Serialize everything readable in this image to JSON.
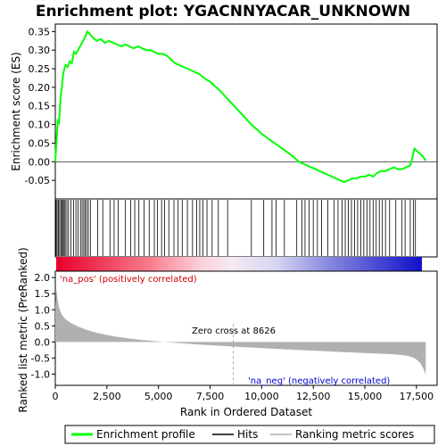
{
  "chart_data": {
    "type": "line",
    "title": "Enrichment plot: YGACNNYACAR_UNKNOWN",
    "xlabel": "Rank in Ordered Dataset",
    "ylabel_top": "Enrichment score (ES)",
    "ylabel_bottom": "Ranked list metric (PreRanked)",
    "xlim": [
      0,
      18500
    ],
    "ylim_top": [
      -0.1,
      0.37
    ],
    "ylim_bottom": [
      -1.35,
      2.2
    ],
    "x_ticks": [
      0,
      2500,
      5000,
      7500,
      10000,
      12500,
      15000,
      17500
    ],
    "x_tick_labels": [
      "0",
      "2,500",
      "5,000",
      "7,500",
      "10,000",
      "12,500",
      "15,000",
      "17,500"
    ],
    "y_ticks_top": [
      -0.05,
      0.0,
      0.05,
      0.1,
      0.15,
      0.2,
      0.25,
      0.3,
      0.35
    ],
    "y_tick_labels_top": [
      "-0.05",
      "0.00",
      "0.05",
      "0.10",
      "0.15",
      "0.20",
      "0.25",
      "0.30",
      "0.35"
    ],
    "y_ticks_bottom": [
      -1.0,
      -0.5,
      0.0,
      0.5,
      1.0,
      1.5,
      2.0
    ],
    "y_tick_labels_bottom": [
      "-1.0",
      "-0.5",
      "0.0",
      "0.5",
      "1.0",
      "1.5",
      "2.0"
    ],
    "series": [
      {
        "name": "Enrichment profile",
        "color": "#00ff00",
        "x": [
          0,
          60,
          120,
          180,
          260,
          320,
          380,
          440,
          500,
          600,
          700,
          800,
          900,
          1000,
          1150,
          1250,
          1350,
          1450,
          1550,
          1650,
          1800,
          2000,
          2200,
          2400,
          2600,
          2800,
          3000,
          3200,
          3400,
          3600,
          3800,
          4000,
          4200,
          4400,
          4600,
          4800,
          5000,
          5200,
          5400,
          5600,
          5800,
          6000,
          6200,
          6400,
          6600,
          6800,
          7000,
          7200,
          7500,
          8000,
          8500,
          9000,
          9500,
          10000,
          10500,
          11000,
          11500,
          11800,
          12000,
          12200,
          12400,
          12600,
          12800,
          13000,
          13200,
          13400,
          13600,
          13800,
          14000,
          14200,
          14400,
          14600,
          14800,
          15000,
          15200,
          15400,
          15600,
          15800,
          16000,
          16200,
          16400,
          16600,
          16800,
          17000,
          17200,
          17300,
          17400,
          17600,
          17800,
          17950
        ],
        "values": [
          0.0,
          0.06,
          0.11,
          0.105,
          0.175,
          0.2,
          0.235,
          0.25,
          0.26,
          0.255,
          0.27,
          0.265,
          0.295,
          0.29,
          0.305,
          0.315,
          0.325,
          0.335,
          0.35,
          0.345,
          0.335,
          0.325,
          0.33,
          0.32,
          0.325,
          0.32,
          0.315,
          0.31,
          0.315,
          0.31,
          0.305,
          0.31,
          0.305,
          0.3,
          0.3,
          0.295,
          0.29,
          0.29,
          0.285,
          0.275,
          0.265,
          0.26,
          0.255,
          0.25,
          0.245,
          0.24,
          0.235,
          0.225,
          0.215,
          0.19,
          0.16,
          0.13,
          0.1,
          0.075,
          0.055,
          0.035,
          0.015,
          0.0,
          -0.005,
          -0.01,
          -0.015,
          -0.02,
          -0.025,
          -0.03,
          -0.035,
          -0.04,
          -0.045,
          -0.05,
          -0.055,
          -0.05,
          -0.045,
          -0.045,
          -0.04,
          -0.04,
          -0.035,
          -0.04,
          -0.03,
          -0.025,
          -0.025,
          -0.02,
          -0.015,
          -0.02,
          -0.02,
          -0.015,
          -0.01,
          0.01,
          0.035,
          0.025,
          0.015,
          0.003
        ]
      }
    ],
    "hits_legend": "Hits",
    "ranking_legend": "Ranking metric scores",
    "enrichment_legend": "Enrichment profile",
    "zero_cross_label": "Zero cross at 8626",
    "zero_cross_x": 8626,
    "pos_label": "'na_pos' (positively correlated)",
    "neg_label": "'na_neg' (negatively correlated)",
    "hit_positions": [
      40,
      90,
      150,
      210,
      270,
      330,
      380,
      430,
      480,
      560,
      640,
      760,
      880,
      1000,
      1100,
      1220,
      1300,
      1380,
      1450,
      1520,
      1600,
      1700,
      2050,
      2300,
      2650,
      2850,
      3050,
      3400,
      3650,
      3850,
      4050,
      4300,
      4550,
      4800,
      4950,
      5150,
      5300,
      5500,
      5750,
      5950,
      6150,
      6400,
      6650,
      6850,
      7000,
      7150,
      7350,
      7600,
      7900,
      8350,
      9500,
      10100,
      10500,
      10700,
      11100,
      11700,
      11950,
      12100,
      12300,
      12500,
      12700,
      12900,
      13200,
      13500,
      13700,
      13900,
      14050,
      14200,
      14350,
      14500,
      14650,
      14800,
      14950,
      15100,
      15250,
      15400,
      15550,
      15700,
      15850,
      16000,
      16200,
      16500,
      16800,
      16950,
      17200,
      17350,
      17450
    ],
    "colors": {
      "enrichment": "#00ff00",
      "hits": "#000000",
      "ranking_fill": "#b0b0b0",
      "pos_text": "#cc0000",
      "neg_text": "#0000cc",
      "zero_line": "#aaaaaa"
    }
  }
}
